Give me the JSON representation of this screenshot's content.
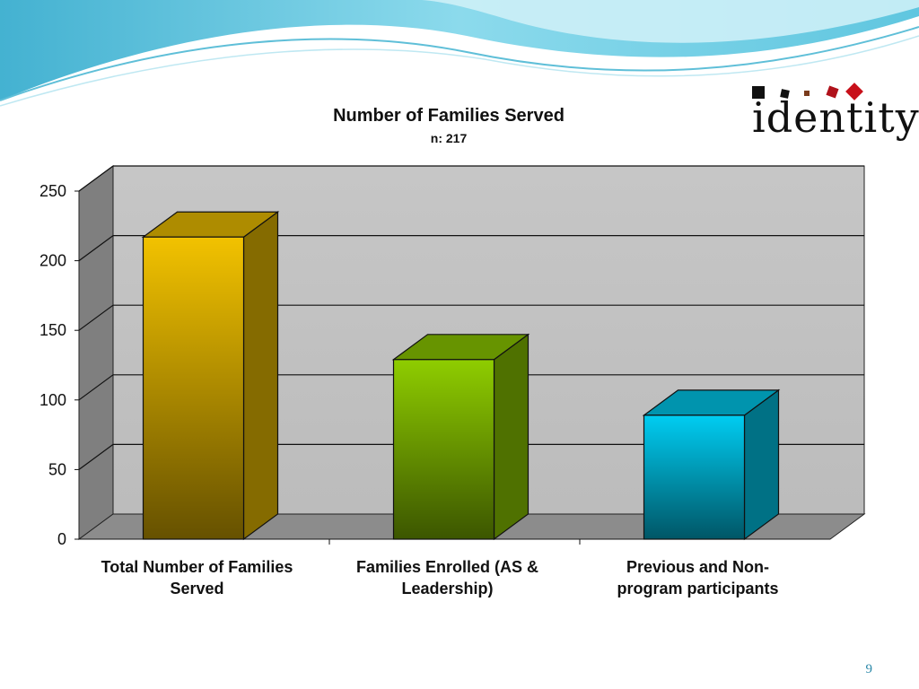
{
  "slide": {
    "page_number": "9",
    "logo_text": "identity",
    "colors": {
      "wave_dark": "#3fb3d1",
      "wave_light": "#a9e4f0",
      "page_number": "#2a88a8"
    }
  },
  "chart_data": {
    "type": "bar",
    "title": "Number of Families Served",
    "subtitle": "n: 217",
    "categories": [
      "Total Number of Families Served",
      "Families Enrolled (AS & Leadership)",
      "Previous and Non-program participants"
    ],
    "category_lines": [
      [
        "Total Number of Families",
        "Served"
      ],
      [
        "Families Enrolled (AS &",
        "Leadership)"
      ],
      [
        "Previous and Non-",
        "program participants"
      ]
    ],
    "values": [
      217,
      129,
      89
    ],
    "bar_colors": [
      "#f2c200",
      "#8fcd00",
      "#00cdf2"
    ],
    "ylim": [
      0,
      250
    ],
    "yticks": [
      0,
      50,
      100,
      150,
      200,
      250
    ],
    "xlabel": "",
    "ylabel": "",
    "grid": true,
    "style": "3d"
  }
}
